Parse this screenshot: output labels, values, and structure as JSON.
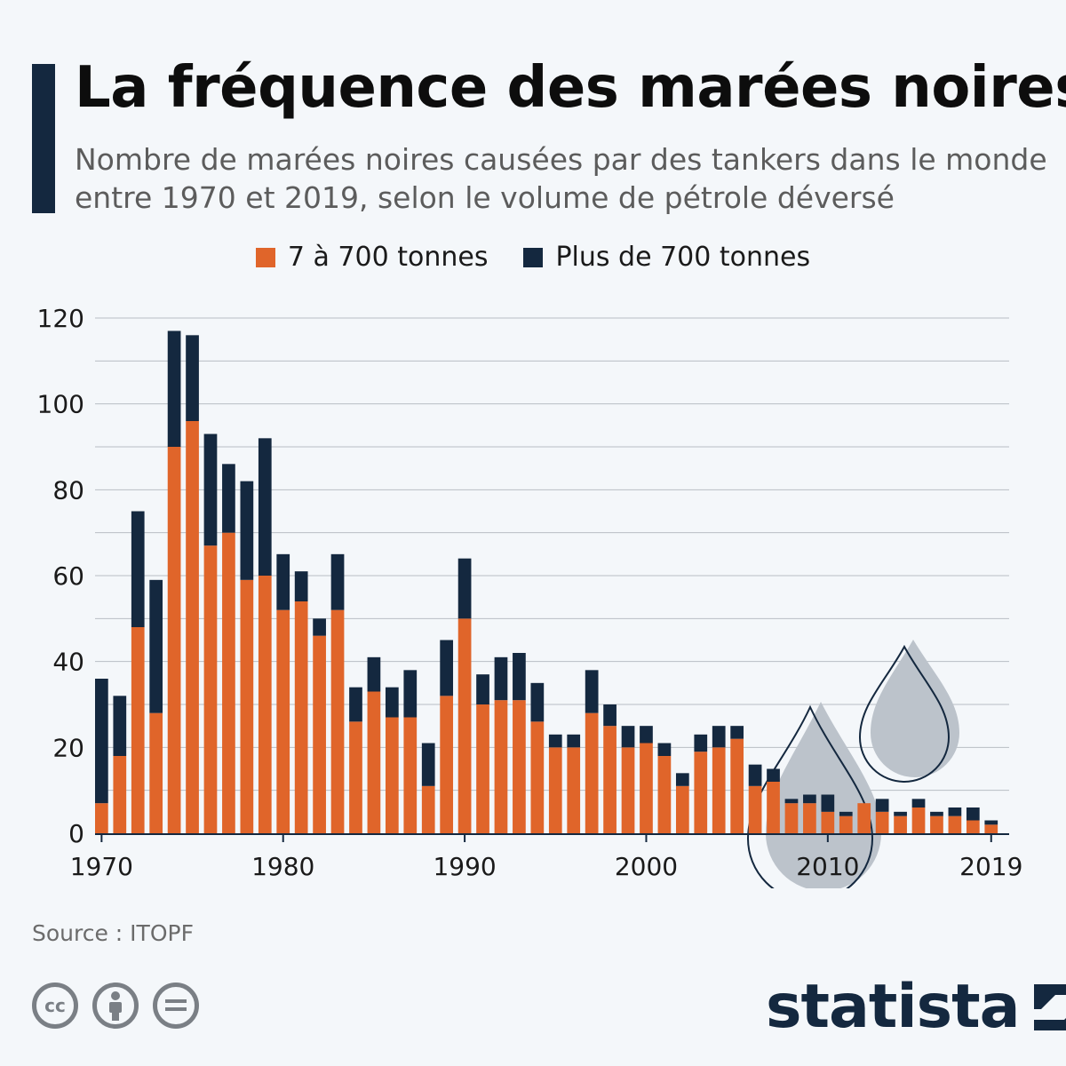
{
  "title": "La fréquence des marées noires",
  "subtitle": "Nombre de marées noires causées par des tankers dans le monde entre 1970 et 2019, selon le volume de pétrole déversé",
  "legend": {
    "small": "7 à 700 tonnes",
    "large": "Plus de 700 tonnes"
  },
  "colors": {
    "small": "#e0652a",
    "large": "#14283f",
    "grid": "#b9bec4",
    "drop": "#bcc3cb"
  },
  "source": "Source : ITOPF",
  "icons": [
    "cc-icon",
    "by-icon",
    "nd-icon",
    "statista-logo-icon"
  ],
  "logo_text": "statista",
  "chart_data": {
    "type": "bar",
    "stacked": true,
    "x": [
      1970,
      1971,
      1972,
      1973,
      1974,
      1975,
      1976,
      1977,
      1978,
      1979,
      1980,
      1981,
      1982,
      1983,
      1984,
      1985,
      1986,
      1987,
      1988,
      1989,
      1990,
      1991,
      1992,
      1993,
      1994,
      1995,
      1996,
      1997,
      1998,
      1999,
      2000,
      2001,
      2002,
      2003,
      2004,
      2005,
      2006,
      2007,
      2008,
      2009,
      2010,
      2011,
      2012,
      2013,
      2014,
      2015,
      2016,
      2017,
      2018,
      2019
    ],
    "x_tick_labels": [
      "1970",
      "1980",
      "1990",
      "2000",
      "2010",
      "2019"
    ],
    "y_ticks": [
      0,
      20,
      40,
      60,
      80,
      100,
      120
    ],
    "ylim": [
      0,
      120
    ],
    "grid": true,
    "legend_position": "top",
    "series": [
      {
        "name": "7 à 700 tonnes",
        "values": [
          7,
          18,
          48,
          28,
          90,
          96,
          67,
          70,
          59,
          60,
          52,
          54,
          46,
          52,
          26,
          33,
          27,
          27,
          11,
          32,
          50,
          30,
          31,
          31,
          26,
          20,
          20,
          28,
          25,
          20,
          21,
          18,
          11,
          19,
          20,
          22,
          11,
          12,
          7,
          7,
          5,
          4,
          7,
          5,
          4,
          6,
          4,
          4,
          3,
          2
        ]
      },
      {
        "name": "Plus de 700 tonnes",
        "values": [
          29,
          14,
          27,
          31,
          27,
          20,
          26,
          16,
          23,
          32,
          13,
          7,
          4,
          13,
          8,
          8,
          7,
          11,
          10,
          13,
          14,
          7,
          10,
          11,
          9,
          3,
          3,
          10,
          5,
          5,
          4,
          3,
          3,
          4,
          5,
          3,
          5,
          3,
          1,
          2,
          4,
          1,
          0,
          3,
          1,
          2,
          1,
          2,
          3,
          1
        ]
      }
    ]
  }
}
